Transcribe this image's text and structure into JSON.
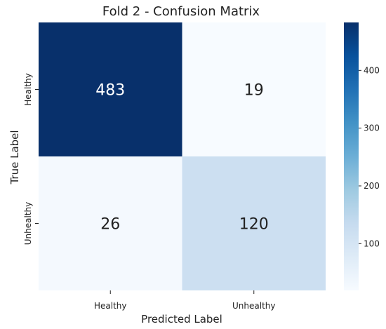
{
  "chart_data": {
    "type": "heatmap",
    "title": "Fold 2 - Confusion Matrix",
    "xlabel": "Predicted Label",
    "ylabel": "True Label",
    "x_categories": [
      "Healthy",
      "Unhealthy"
    ],
    "y_categories": [
      "Healthy",
      "Unhealthy"
    ],
    "values": [
      [
        483,
        19
      ],
      [
        26,
        120
      ]
    ],
    "colormap": "Blues",
    "colorbar": {
      "range": [
        19,
        483
      ],
      "ticks": [
        100,
        200,
        300,
        400
      ],
      "colors": [
        "#f7fbff",
        "#deebf7",
        "#c6dbef",
        "#9ecae1",
        "#6baed6",
        "#4292c6",
        "#2171b5",
        "#08519c",
        "#08306b"
      ]
    },
    "grid": false,
    "legend": "colorbar-right",
    "text_colors": {
      "dark_cell": "#ffffff",
      "light_cell": "#222222"
    }
  }
}
